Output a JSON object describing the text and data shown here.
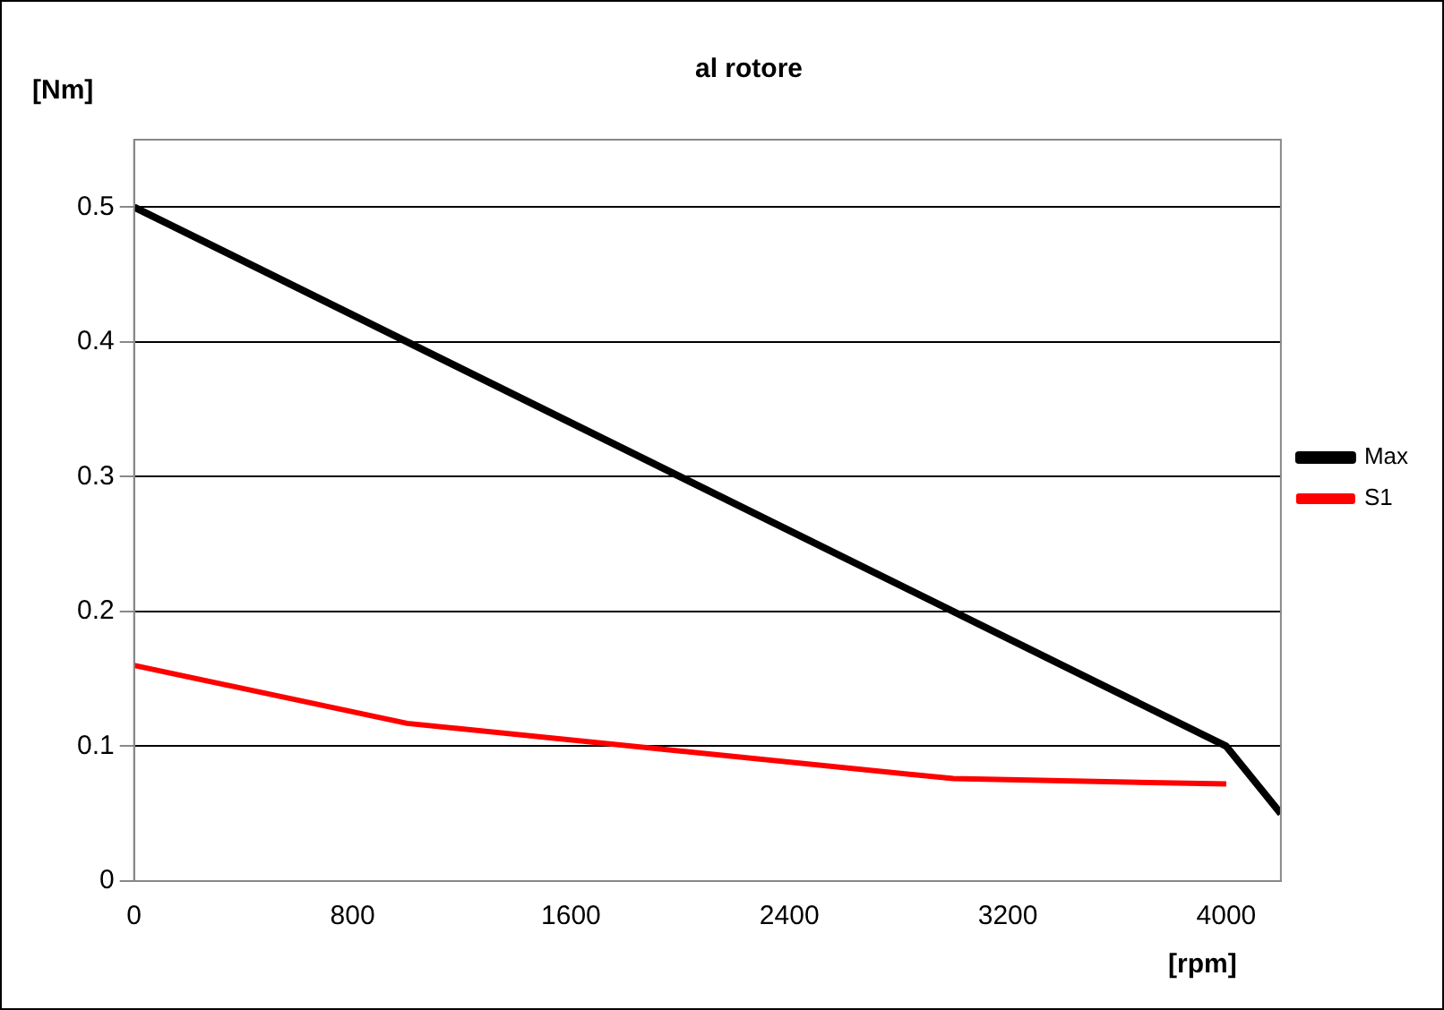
{
  "chart_data": {
    "type": "line",
    "title": "al rotore",
    "xlabel": "[rpm]",
    "ylabel": "[Nm]",
    "xlim": [
      0,
      4200
    ],
    "xticks": [
      0,
      800,
      1600,
      2400,
      3200,
      4000
    ],
    "ylim": [
      0,
      0.55
    ],
    "yticks": [
      0,
      0.1,
      0.2,
      0.3,
      0.4,
      0.5
    ],
    "grid": "y",
    "legend": "right",
    "marker": "none",
    "line_style": "solid",
    "series": [
      {
        "name": "Max",
        "color": "#000000",
        "x": [
          0,
          4000,
          4200
        ],
        "values": [
          0.5,
          0.1,
          0.05
        ]
      },
      {
        "name": "S1",
        "color": "#ff0000",
        "x": [
          0,
          1000,
          3000,
          4000
        ],
        "values": [
          0.16,
          0.117,
          0.076,
          0.072
        ]
      }
    ]
  }
}
